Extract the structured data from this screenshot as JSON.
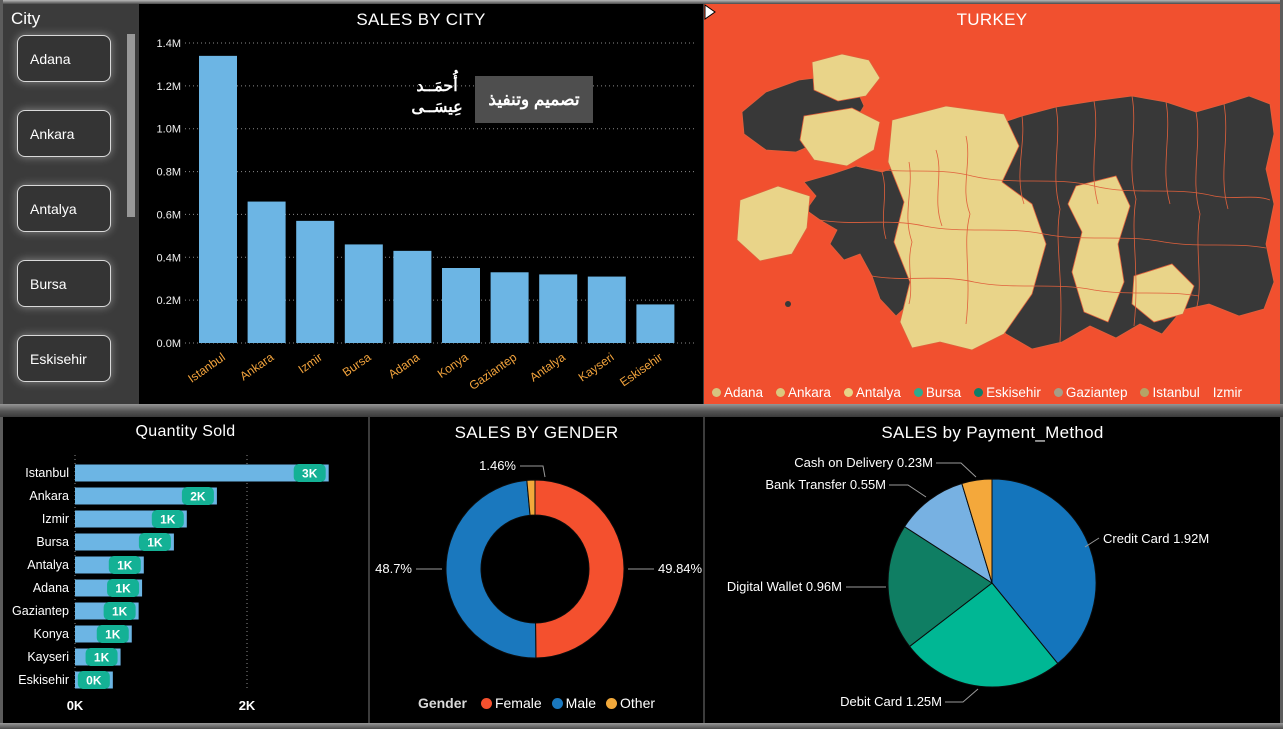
{
  "slicer": {
    "title": "City",
    "items": [
      "Adana",
      "Ankara",
      "Antalya",
      "Bursa",
      "Eskisehir"
    ]
  },
  "watermark": {
    "box_text": "تصميم وتنفيذ",
    "signature_line1": "أُحمَــد",
    "signature_line2": "عِيسَــى"
  },
  "map": {
    "title": "TURKEY",
    "next_arrow": "next-page-arrow",
    "colors": {
      "sea": "#F1502F",
      "land": "#383838",
      "highlight": "#E9D489",
      "border": "#E0603C"
    },
    "legend": [
      {
        "label": "Adana",
        "color": "#D6C480"
      },
      {
        "label": "Ankara",
        "color": "#DBC87E"
      },
      {
        "label": "Antalya",
        "color": "#E7D488"
      },
      {
        "label": "Bursa",
        "color": "#2FAA8D"
      },
      {
        "label": "Eskisehir",
        "color": "#0E7C67"
      },
      {
        "label": "Gaziantep",
        "color": "#A79E86"
      },
      {
        "label": "Istanbul",
        "color": "#B4A466"
      },
      {
        "label": "Izmir",
        "color": ""
      }
    ]
  },
  "chart_data": [
    {
      "id": "sales_by_city",
      "type": "bar",
      "title": "SALES BY CITY",
      "categories": [
        "Istanbul",
        "Ankara",
        "Izmir",
        "Bursa",
        "Adana",
        "Konya",
        "Gaziantep",
        "Antalya",
        "Kayseri",
        "Eskisehir"
      ],
      "values": [
        1.34,
        0.66,
        0.57,
        0.46,
        0.43,
        0.35,
        0.33,
        0.32,
        0.31,
        0.18
      ],
      "unit": "M",
      "ylim": [
        0,
        1.4
      ],
      "yticks": [
        "0.0M",
        "0.2M",
        "0.4M",
        "0.6M",
        "0.8M",
        "1.0M",
        "1.2M",
        "1.4M"
      ],
      "grid": "dotted-horizontal",
      "bar_color": "#6CB5E4",
      "xlabel_color": "#F2A33C"
    },
    {
      "id": "quantity_sold",
      "type": "bar",
      "orientation": "horizontal",
      "title": "Quantity Sold",
      "categories": [
        "Istanbul",
        "Ankara",
        "Izmir",
        "Bursa",
        "Antalya",
        "Adana",
        "Gaziantep",
        "Konya",
        "Kayseri",
        "Eskisehir"
      ],
      "values": [
        2.95,
        1.65,
        1.3,
        1.15,
        0.8,
        0.78,
        0.74,
        0.66,
        0.53,
        0.44
      ],
      "data_labels": [
        "3K",
        "2K",
        "1K",
        "1K",
        "1K",
        "1K",
        "1K",
        "1K",
        "1K",
        "0K"
      ],
      "xlim": [
        0,
        2
      ],
      "xticks": [
        "0K",
        "2K"
      ],
      "xtick_values": [
        0,
        2
      ],
      "grid": "dotted-vertical",
      "bar_color": "#6CB5E4",
      "label_pill_color": "#14B195"
    },
    {
      "id": "sales_by_gender",
      "type": "pie",
      "subtype": "donut",
      "title": "SALES BY GENDER",
      "legend_title": "Gender",
      "legend_position": "bottom",
      "slices": [
        {
          "label": "Female",
          "pct": 49.84,
          "display": "49.84%",
          "color": "#F4502E"
        },
        {
          "label": "Male",
          "pct": 48.7,
          "display": "48.7%",
          "color": "#1A78BE"
        },
        {
          "label": "Other",
          "pct": 1.46,
          "display": "1.46%",
          "color": "#F2A93B"
        }
      ]
    },
    {
      "id": "sales_by_payment_method",
      "type": "pie",
      "title": "SALES by Payment_Method",
      "slices": [
        {
          "label": "Credit Card",
          "value": 1.92,
          "display": "Credit Card 1.92M",
          "color": "#1475BC"
        },
        {
          "label": "Debit Card",
          "value": 1.25,
          "display": "Debit Card 1.25M",
          "color": "#00B794"
        },
        {
          "label": "Digital Wallet",
          "value": 0.96,
          "display": "Digital Wallet 0.96M",
          "color": "#0F7E63"
        },
        {
          "label": "Bank Transfer",
          "value": 0.55,
          "display": "Bank Transfer 0.55M",
          "color": "#77B1E2"
        },
        {
          "label": "Cash on Delivery",
          "value": 0.23,
          "display": "Cash on Delivery 0.23M",
          "color": "#F4A83B"
        }
      ]
    }
  ]
}
